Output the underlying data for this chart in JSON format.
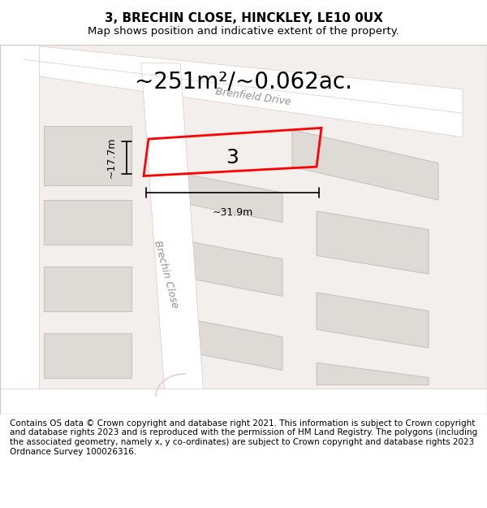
{
  "title_line1": "3, BRECHIN CLOSE, HINCKLEY, LE10 0UX",
  "title_line2": "Map shows position and indicative extent of the property.",
  "area_text": "~251m²/~0.062ac.",
  "width_label": "~31.9m",
  "height_label": "~17.7m",
  "property_number": "3",
  "road_label1": "Brenfield Drive",
  "road_label2": "Brechin Close",
  "footer_text": "Contains OS data © Crown copyright and database right 2021. This information is subject to Crown copyright and database rights 2023 and is reproduced with the permission of HM Land Registry. The polygons (including the associated geometry, namely x, y co-ordinates) are subject to Crown copyright and database rights 2023 Ordnance Survey 100026316.",
  "bg_color": "#f0eeec",
  "map_bg": "#f5f3f1",
  "road_color": "#ffffff",
  "road_stroke": "#e8d8d8",
  "building_color": "#e8e4e0",
  "building_stroke": "#d0c8c4",
  "plot_color": "red",
  "plot_lw": 2.0,
  "dim_color": "#111111",
  "title_fontsize": 11,
  "subtitle_fontsize": 9.5,
  "area_fontsize": 20,
  "label_fontsize": 9,
  "road_label_fontsize": 9,
  "footer_fontsize": 7.5
}
